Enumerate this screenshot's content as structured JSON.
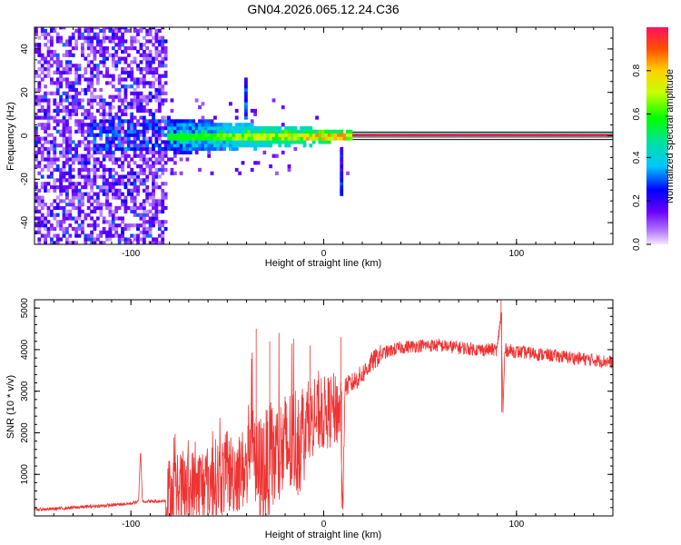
{
  "title": "GN04.2026.065.12.24.C36",
  "chart_data": [
    {
      "type": "heatmap",
      "xlabel": "Height of straight line (km)",
      "ylabel": "Frequency (Hz)",
      "xlim": [
        -150,
        150
      ],
      "ylim": [
        -50,
        50
      ],
      "xticks": [
        -100,
        0,
        100
      ],
      "xtick_labels": [
        "-100",
        "0",
        "100"
      ],
      "yticks": [
        -40,
        -20,
        0,
        20,
        40
      ],
      "ytick_labels": [
        "-40",
        "-20",
        "0",
        "20",
        "40"
      ],
      "colorbar": {
        "label": "Normalized spectral amplitude",
        "range": [
          0,
          1
        ],
        "ticks": [
          0.0,
          0.2,
          0.4,
          0.6,
          0.8
        ],
        "tick_labels": [
          "0.0",
          "0.2",
          "0.4",
          "0.6",
          "0.8"
        ]
      },
      "features": [
        {
          "region_km": [
            -150,
            -81
          ],
          "description": "broadband noise across all frequencies",
          "amplitude": 0.15
        },
        {
          "region_km": [
            -81,
            15
          ],
          "description": "energy concentrated near 0 Hz with jitter up to about ±8 Hz",
          "amplitude": 0.5
        },
        {
          "region_km": [
            15,
            150
          ],
          "description": "narrow carrier line at 0 Hz",
          "amplitude": 0.95
        },
        {
          "at_km": -41,
          "frequency_hz": [
            8,
            27
          ],
          "description": "spike"
        },
        {
          "at_km": 9,
          "frequency_hz": [
            -27,
            -5
          ],
          "description": "spike"
        }
      ]
    },
    {
      "type": "line",
      "xlabel": "Height of straight line (km)",
      "ylabel": "SNR (10 * v/v)",
      "xlim": [
        -150,
        150
      ],
      "ylim": [
        0,
        5200
      ],
      "xticks": [
        -100,
        0,
        100
      ],
      "xtick_labels": [
        "-100",
        "0",
        "100"
      ],
      "yticks": [
        1000,
        2000,
        3000,
        4000,
        5000
      ],
      "ytick_labels": [
        "1000",
        "2000",
        "3000",
        "4000",
        "5000"
      ],
      "color": "#ee3333",
      "series": [
        {
          "name": "SNR",
          "x": [
            -150,
            -140,
            -130,
            -120,
            -110,
            -100,
            -96,
            -95,
            -94,
            -90,
            -85,
            -82,
            -81,
            -80,
            -75,
            -70,
            -65,
            -60,
            -55,
            -50,
            -45,
            -40,
            -37,
            -35,
            -30,
            -25,
            -20,
            -15,
            -10,
            -5,
            0,
            5,
            9,
            10,
            11,
            15,
            20,
            25,
            30,
            40,
            50,
            60,
            70,
            80,
            90,
            92,
            93,
            94,
            100,
            110,
            120,
            130,
            140,
            150
          ],
          "y": [
            150,
            170,
            200,
            230,
            260,
            300,
            350,
            1600,
            350,
            350,
            350,
            380,
            800,
            1000,
            1050,
            1100,
            1200,
            1300,
            1400,
            1500,
            1550,
            1650,
            3400,
            1700,
            1900,
            2100,
            2300,
            2500,
            2700,
            2800,
            2900,
            3000,
            3000,
            200,
            3100,
            3200,
            3400,
            3700,
            3900,
            4050,
            4100,
            4100,
            4050,
            4000,
            4000,
            4900,
            2500,
            4000,
            3950,
            3900,
            3850,
            3800,
            3750,
            3700
          ],
          "noise_envelope": [
            {
              "x_km": [
                -150,
                -82
              ],
              "amplitude": 80
            },
            {
              "x_km": [
                -82,
                -40
              ],
              "amplitude": 1000
            },
            {
              "x_km": [
                -40,
                -10
              ],
              "amplitude": 1400
            },
            {
              "x_km": [
                -10,
                10
              ],
              "amplitude": 900
            },
            {
              "x_km": [
                10,
                30
              ],
              "amplitude": 500
            },
            {
              "x_km": [
                30,
                150
              ],
              "amplitude": 320
            }
          ]
        }
      ],
      "annotations": [
        {
          "x_km": -95,
          "peak_value": 1600
        },
        {
          "x_km": -35,
          "peak_value": 4500
        },
        {
          "x_km": -28,
          "peak_value": 4200
        },
        {
          "x_km": -7,
          "peak_value": 4100
        },
        {
          "x_km": 9,
          "trough_value": 200,
          "peak_value": 4300
        },
        {
          "x_km": 92,
          "peak_value": 5200,
          "trough_value": 2500
        }
      ]
    }
  ]
}
